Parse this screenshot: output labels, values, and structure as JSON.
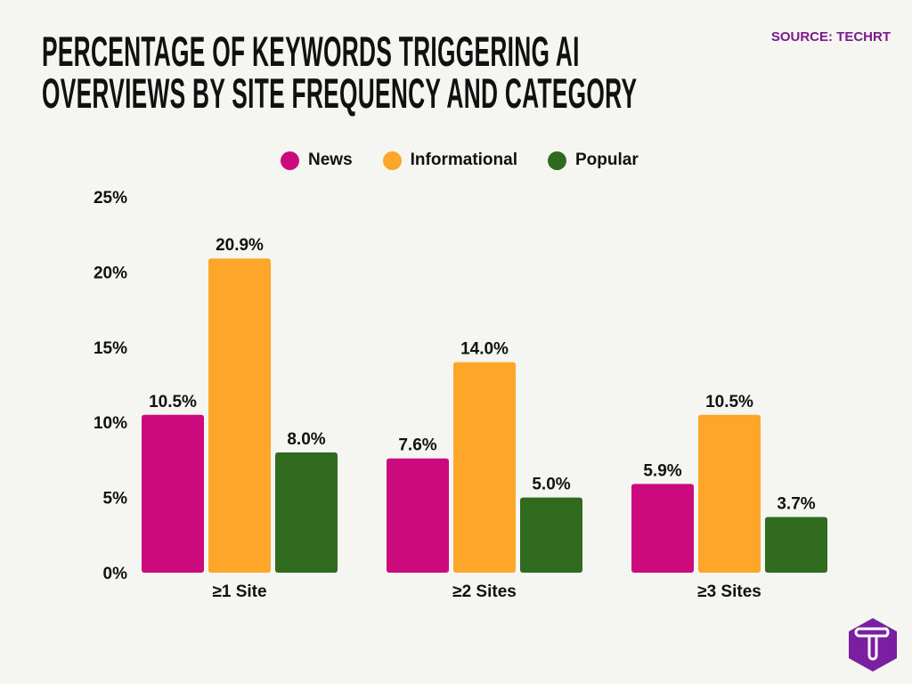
{
  "header": {
    "title_line1": "PERCENTAGE OF KEYWORDS TRIGGERING AI",
    "title_line2": "OVERVIEWS BY SITE FREQUENCY AND CATEGORY",
    "source": "SOURCE: TECHRT"
  },
  "logo": {
    "letter": "T",
    "color": "#7b1fa2"
  },
  "chart_data": {
    "type": "bar",
    "title": "PERCENTAGE OF KEYWORDS TRIGGERING AI OVERVIEWS BY SITE FREQUENCY AND CATEGORY",
    "categories": [
      "≥1 Site",
      "≥2 Sites",
      "≥3 Sites"
    ],
    "series": [
      {
        "name": "News",
        "color": "#cc0a7e",
        "values": [
          10.5,
          7.6,
          5.9
        ],
        "labels": [
          "10.5%",
          "7.6%",
          "5.9%"
        ]
      },
      {
        "name": "Informational",
        "color": "#fda629",
        "values": [
          20.9,
          14.0,
          10.5
        ],
        "labels": [
          "20.9%",
          "14.0%",
          "10.5%"
        ]
      },
      {
        "name": "Popular",
        "color": "#2f6a1e",
        "values": [
          8.0,
          5.0,
          3.7
        ],
        "labels": [
          "8.0%",
          "5.0%",
          "3.7%"
        ]
      }
    ],
    "ylim": [
      0,
      25
    ],
    "yticks": [
      "0%",
      "5%",
      "10%",
      "15%",
      "20%",
      "25%"
    ],
    "xlabel": "",
    "ylabel": "",
    "grid": false,
    "legend": "top-center"
  }
}
